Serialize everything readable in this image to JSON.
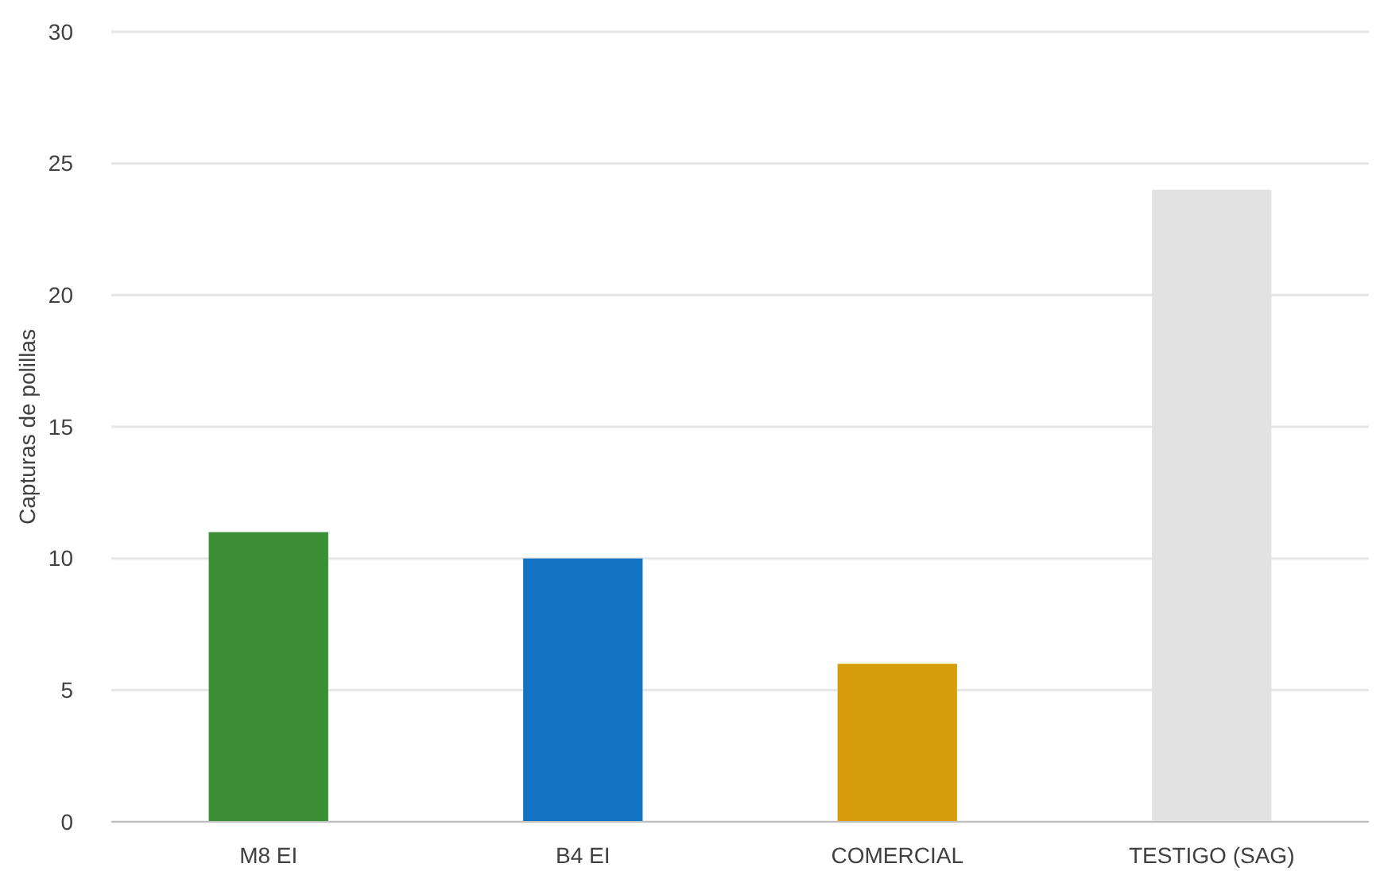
{
  "chart_data": {
    "type": "bar",
    "ylabel": "Capturas de polillas",
    "categories": [
      "M8 EI",
      "B4 EI",
      "COMERCIAL",
      "TESTIGO (SAG)"
    ],
    "values": [
      11,
      10,
      6,
      24
    ],
    "colors": [
      "#3a8e36",
      "#1273c4",
      "#d89d0c",
      "#e2e2e2"
    ],
    "ylim": [
      0,
      30
    ],
    "yticks": [
      0,
      5,
      10,
      15,
      20,
      25,
      30
    ],
    "grid": "y"
  }
}
